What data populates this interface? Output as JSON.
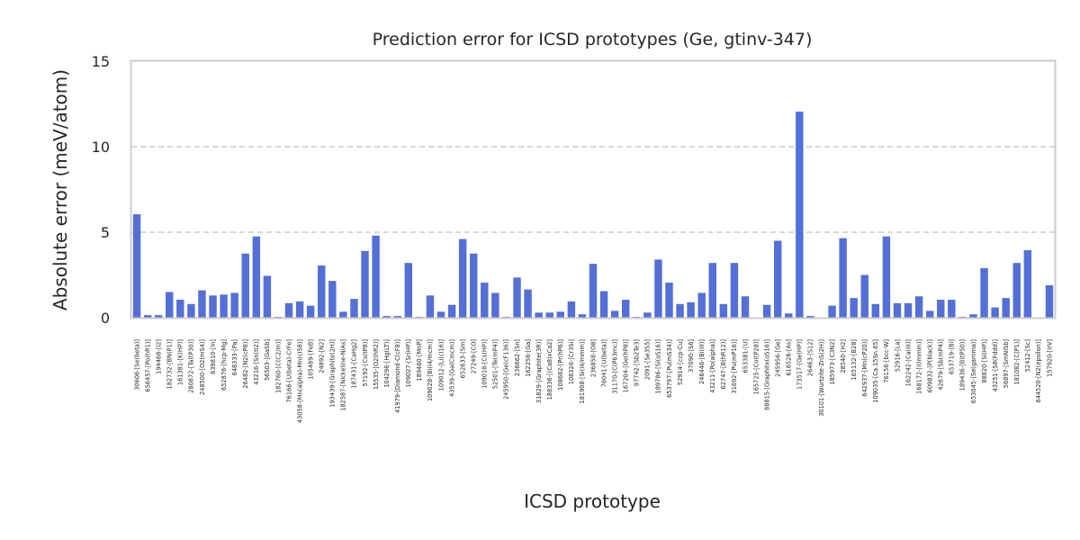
{
  "chart_data": {
    "type": "bar",
    "title": "Prediction error for ICSD prototypes (Ge, gtinv-347)",
    "xlabel": "ICSD prototype",
    "ylabel": "Absolute error (meV/atom)",
    "ylim": [
      0,
      15
    ],
    "yticks": [
      "0",
      "5",
      "10",
      "15"
    ],
    "grid": "horizontal-dashed",
    "bar_color": "#5470d6",
    "categories": [
      "30606-[Se(beta)]",
      "656457-[Po(hR1)]",
      "194468-[I2]",
      "182732-[BN(P1)]",
      "161381-[K(HP)]",
      "280872-[Ta(tP30)]",
      "248500-[O2(mS4)]",
      "639810-[In]",
      "652876-[hcp-Mg]",
      "648333-[Pa]",
      "26482-[N2(cP8)]",
      "43216-[Sn(tI2)]",
      "56503-[GaSb]",
      "182760-[C(C2/m)]",
      "76166-[U(beta)-CrFe]",
      "43058-[Mn(alpha)-Mn(cI58)]",
      "105489-[FeB]",
      "24892-[N2]",
      "193439-[Graphite(2H)]",
      "182587-[Nickeline-NiAs]",
      "187431-[CaHg2]",
      "57192-[Cs(tP8)]",
      "15535-[O2(hR2)]",
      "104296-[Hg(LT)]",
      "41979-[Diamond-C(cF8)]",
      "109027-[Sr(HP)]",
      "189460-[MnP]",
      "109028-[Bi(I4/mcm)]",
      "109012-[Li(cI16)]",
      "43539-[Ga(Cmcm)]",
      "652633-[Sm]",
      "27249-[CO]",
      "109018-[Cs(HP)]",
      "52501-[Te(mP4)]",
      "245950-[Ge(cF136)]",
      "236662-[Sn]",
      "162256-[Ga]",
      "31829-[Graphite(3R)]",
      "188336-[(Ca8)xCa2]",
      "108682-[Pr(hP6)]",
      "108326-[Cr3Si]",
      "181908-[Si(I4/mmm)]",
      "236858-[O8]",
      "76041-[U(beta)]",
      "31170-[C(P63mc)]",
      "167204-[Ge(hP8)]",
      "97742-[Sb2Te3]",
      "2091-[Se3S5]",
      "189786-[Si(oS16)]",
      "653797-[Pu(mS34)]",
      "52914-[ccp-Cu]",
      "37090-[S6]",
      "246446-[Bi(III)]",
      "43211-[Po(alpha)]",
      "62747-[B(hR12)]",
      "31692-[Pu(mP16)]",
      "653381-[U]",
      "165725-[Co(tP28)]",
      "88815-[Graphite(oS16)]",
      "245956-[Ge]",
      "616526-[As]",
      "173517-[Ge(HP)]",
      "26463-[S12]",
      "30101-[Wurtzite-ZnS(2H)]",
      "185973-[C3N2]",
      "28540-[H2]",
      "165132-[B28]",
      "642937-[Mn(cP20)]",
      "109035-[Ca.15Sn.85]",
      "76156-[bcc-W]",
      "52916-[La]",
      "162242-[Ca(III)]",
      "168172-[I(Immm)]",
      "609832-[P(black)]",
      "42679-[Sb(mP4)]",
      "653719-[Bi]",
      "189436-[B(tP50)]",
      "653045-[Se(gamma)]",
      "88820-[Si(HP)]",
      "43251-[S8(Fddd)]",
      "56897-[SmNiSb]",
      "181082-[C(P1)]",
      "52412-[Sc]",
      "644520-[N2(epsilon)]",
      "157920-[IrV]"
    ],
    "values": [
      6.05,
      0.15,
      0.15,
      1.5,
      1.05,
      0.8,
      1.6,
      1.3,
      1.35,
      1.45,
      3.75,
      4.75,
      2.45,
      0.05,
      0.85,
      0.95,
      0.7,
      3.05,
      2.15,
      0.35,
      1.1,
      3.9,
      4.8,
      0.1,
      0.1,
      3.2,
      0.05,
      1.3,
      0.35,
      0.75,
      4.6,
      3.75,
      2.05,
      1.45,
      0.05,
      2.35,
      1.65,
      0.3,
      0.3,
      0.35,
      0.95,
      0.2,
      3.15,
      1.55,
      0.4,
      1.05,
      0.05,
      0.3,
      3.4,
      2.05,
      0.8,
      0.9,
      1.45,
      3.2,
      0.8,
      3.2,
      1.25,
      0.0,
      0.75,
      4.5,
      0.25,
      12.05,
      0.1,
      0.0,
      0.7,
      4.65,
      1.15,
      2.5,
      0.8,
      4.75,
      0.85,
      0.85,
      1.25,
      0.4,
      1.05,
      1.05,
      0.05,
      0.2,
      2.9,
      0.6,
      1.15,
      3.2,
      3.95,
      0.0,
      1.9
    ]
  }
}
